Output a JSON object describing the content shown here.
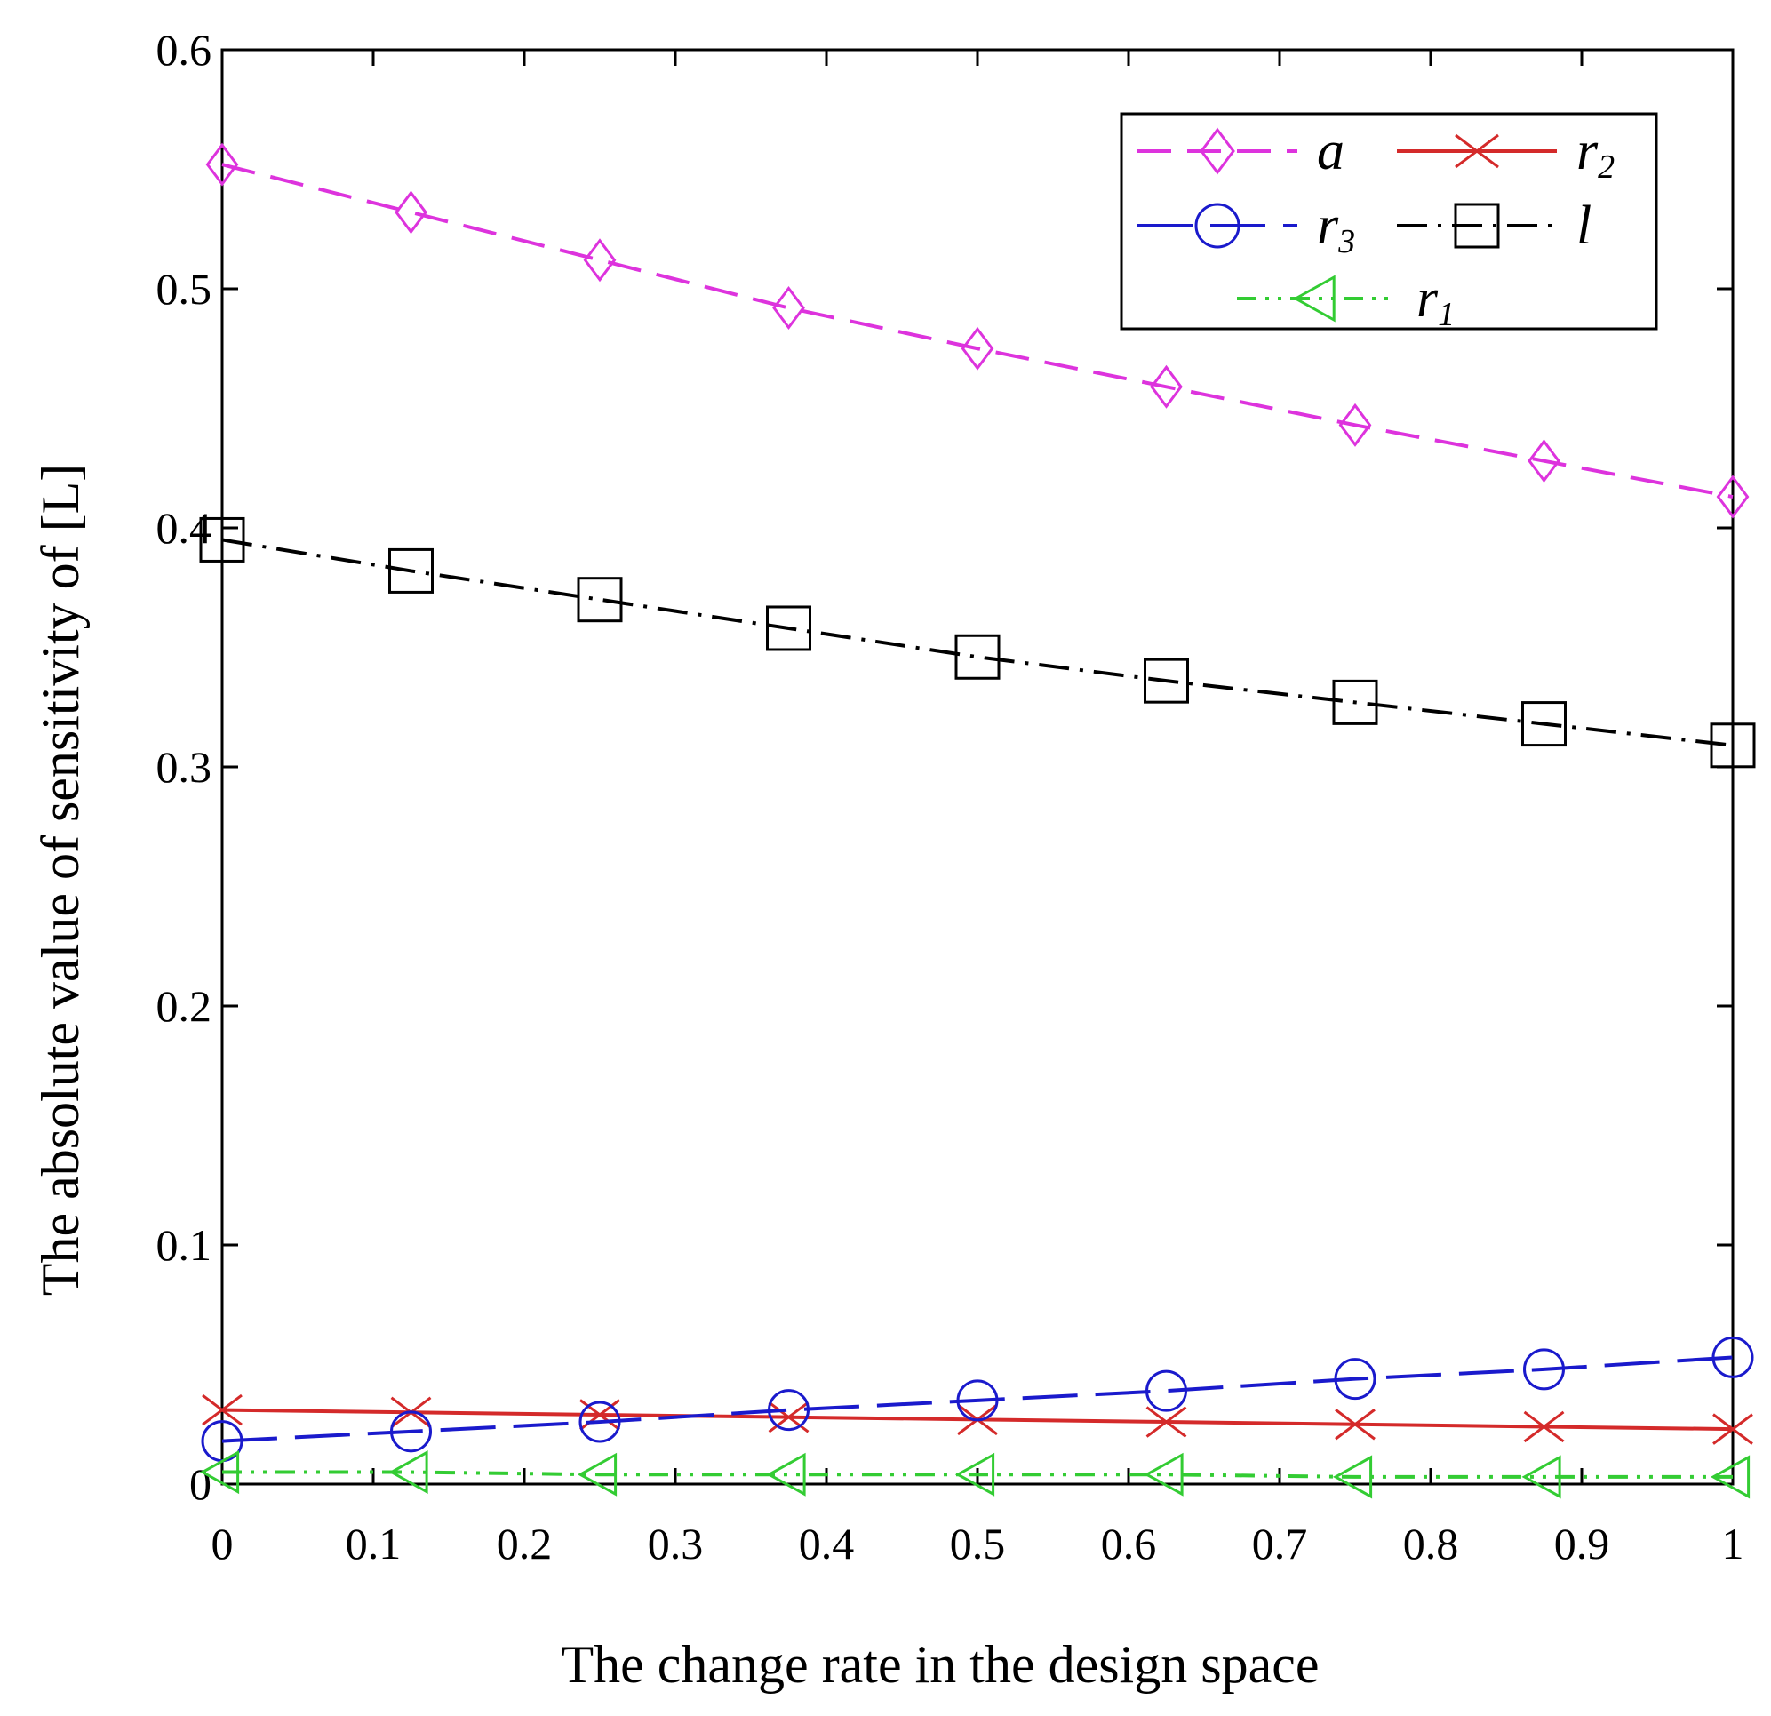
{
  "chart_data": {
    "type": "line",
    "title": "",
    "xlabel": "The change rate in the design space",
    "ylabel": "The absolute value of sensitivity of [L]",
    "xlim": [
      0,
      1
    ],
    "ylim": [
      0,
      0.6
    ],
    "x": [
      0,
      0.125,
      0.25,
      0.375,
      0.5,
      0.625,
      0.75,
      0.875,
      1.0
    ],
    "xticks": [
      0,
      0.1,
      0.2,
      0.3,
      0.4,
      0.5,
      0.6,
      0.7,
      0.8,
      0.9,
      1
    ],
    "xtick_labels": [
      "0",
      "0.1",
      "0.2",
      "0.3",
      "0.4",
      "0.5",
      "0.6",
      "0.7",
      "0.8",
      "0.9",
      "1"
    ],
    "yticks": [
      0,
      0.1,
      0.2,
      0.3,
      0.4,
      0.5,
      0.6
    ],
    "ytick_labels": [
      "0",
      "0.1",
      "0.2",
      "0.3",
      "0.4",
      "0.5",
      "0.6"
    ],
    "grid": false,
    "legend_position": "top-right",
    "series": [
      {
        "name": "a",
        "label_main": "a",
        "label_sub": "",
        "color": "#dd33dd",
        "dash": "38 18",
        "marker": "diamond",
        "values": [
          0.552,
          0.532,
          0.512,
          0.492,
          0.475,
          0.459,
          0.443,
          0.428,
          0.413
        ]
      },
      {
        "name": "r2",
        "label_main": "r",
        "label_sub": "2",
        "color": "#d42a2a",
        "dash": "",
        "marker": "x",
        "values": [
          0.031,
          0.03,
          0.029,
          0.028,
          0.027,
          0.026,
          0.025,
          0.024,
          0.023
        ]
      },
      {
        "name": "r3",
        "label_main": "r",
        "label_sub": "3",
        "color": "#1a1acc",
        "dash": "62 20",
        "marker": "circle",
        "values": [
          0.018,
          0.022,
          0.026,
          0.031,
          0.035,
          0.039,
          0.044,
          0.048,
          0.053
        ]
      },
      {
        "name": "l",
        "label_main": "l",
        "label_sub": "",
        "color": "#000000",
        "dash": "34 12 4 12",
        "marker": "square",
        "values": [
          0.395,
          0.382,
          0.37,
          0.358,
          0.346,
          0.336,
          0.327,
          0.318,
          0.309
        ]
      },
      {
        "name": "r1",
        "label_main": "r",
        "label_sub": "1",
        "color": "#33cc33",
        "dash": "22 10 4 10 4 10",
        "marker": "triangle-left",
        "values": [
          0.005,
          0.005,
          0.004,
          0.004,
          0.004,
          0.004,
          0.003,
          0.003,
          0.003
        ]
      }
    ],
    "legend_layout": [
      [
        "a",
        "r2"
      ],
      [
        "r3",
        "l"
      ],
      [
        "r1"
      ]
    ]
  }
}
